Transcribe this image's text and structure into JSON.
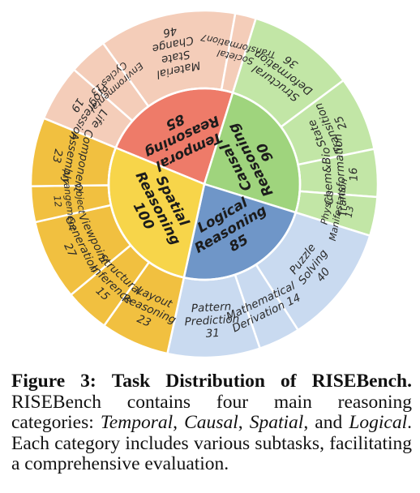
{
  "chart_data": {
    "type": "sunburst",
    "categories": [
      {
        "label": "Temporal Reasoning",
        "label_lines": [
          "Temporal",
          "Reasoning",
          "85"
        ],
        "value": 85,
        "color": "#ee7b69",
        "subtasks": [
          {
            "label": "Life Progression",
            "lines": [
              "Life",
              "Progression",
              "19"
            ],
            "value": 19
          },
          {
            "label": "Environmental Cycles",
            "lines": [
              "Environmental",
              "Cycles 13"
            ],
            "value": 13
          },
          {
            "label": "Material State Change",
            "lines": [
              "Material",
              "State",
              "Change",
              "46"
            ],
            "value": 46
          },
          {
            "label": "Societal Transformation",
            "lines": [
              "Societal",
              "Transformation7"
            ],
            "value": 7
          }
        ],
        "sub_color": "#f4cdb9"
      },
      {
        "label": "Causal Reasoning",
        "label_lines": [
          "Causal",
          "Reasoning",
          "90"
        ],
        "value": 90,
        "color": "#9fd47d",
        "subtasks": [
          {
            "label": "Structural Deformation",
            "lines": [
              "Structural",
              "Deformation",
              "36"
            ],
            "value": 36
          },
          {
            "label": "State Transition",
            "lines": [
              "State",
              "Transition",
              "25"
            ],
            "value": 25
          },
          {
            "label": "Chem&Bio Transformation",
            "lines": [
              "Chem&Bio",
              "Transformation",
              "16"
            ],
            "value": 16
          },
          {
            "label": "Physics Manifestation",
            "lines": [
              "Physics",
              "Manifestation",
              "13"
            ],
            "value": 13
          }
        ],
        "sub_color": "#c2e6a6"
      },
      {
        "label": "Logical Reasoning",
        "label_lines": [
          "Logical",
          "Reasoning",
          "85"
        ],
        "value": 85,
        "color": "#6f96c8",
        "subtasks": [
          {
            "label": "Puzzle Solving",
            "lines": [
              "Puzzle",
              "Solving",
              "40"
            ],
            "value": 40
          },
          {
            "label": "Mathematical Derivation",
            "lines": [
              "Mathematical",
              "Derivation 14"
            ],
            "value": 14
          },
          {
            "label": "Pattern Prediction",
            "lines": [
              "Pattern",
              "Prediction",
              "31"
            ],
            "value": 31
          }
        ],
        "sub_color": "#c9daf0"
      },
      {
        "label": "Spatial Reasoning",
        "label_lines": [
          "Spatial",
          "Reasoning",
          "100"
        ],
        "value": 100,
        "color": "#f7d54a",
        "subtasks": [
          {
            "label": "Layout Reasoning",
            "lines": [
              "Layout",
              "Reasoning",
              "23"
            ],
            "value": 23
          },
          {
            "label": "Structural Inference",
            "lines": [
              "Structural",
              "Inference",
              "15"
            ],
            "value": 15
          },
          {
            "label": "Viewpoint Generation",
            "lines": [
              "Viewpoint",
              "Generation",
              "27"
            ],
            "value": 27
          },
          {
            "label": "Object Arrangement",
            "lines": [
              "Object",
              "Arrangement",
              "12"
            ],
            "value": 12
          },
          {
            "label": "Component Assembly",
            "lines": [
              "Component",
              "Assembly",
              "23"
            ],
            "value": 23
          }
        ],
        "sub_color": "#f1c040"
      }
    ]
  },
  "caption": {
    "figure_label": "Figure 3:",
    "title": "Task Distribution of RISEBench.",
    "text_1": "RISEBench contains four main reasoning categories: ",
    "cat_1": "Temporal",
    "sep_1": ", ",
    "cat_2": "Causal",
    "sep_2": ", ",
    "cat_3": "Spatial",
    "sep_3": ", and ",
    "cat_4": "Logical",
    "text_2": ". Each category includes various subtasks, facilitating a comprehensive evaluation."
  }
}
